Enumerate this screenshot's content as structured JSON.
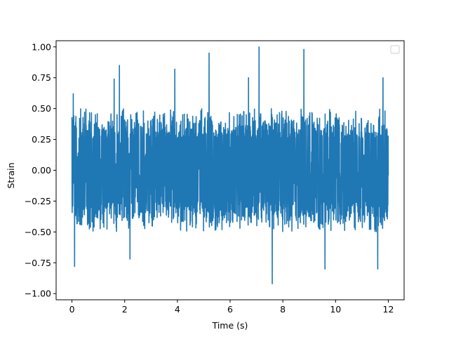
{
  "chart_data": {
    "type": "line",
    "title": "",
    "xlabel": "Time (s)",
    "ylabel": "Strain",
    "xlim": [
      -0.6,
      12.6
    ],
    "ylim": [
      -1.05,
      1.05
    ],
    "xticks": [
      0,
      2,
      4,
      6,
      8,
      10,
      12
    ],
    "xtick_labels": [
      "0",
      "2",
      "4",
      "6",
      "8",
      "10",
      "12"
    ],
    "yticks": [
      -1.0,
      -0.75,
      -0.5,
      -0.25,
      0.0,
      0.25,
      0.5,
      0.75,
      1.0
    ],
    "ytick_labels": [
      "−1.00",
      "−0.75",
      "−0.50",
      "−0.25",
      "0.00",
      "0.25",
      "0.50",
      "0.75",
      "1.00"
    ],
    "grid": false,
    "legend": "upper right (empty)",
    "colors": {
      "series": "#1f77b4"
    },
    "series": [
      {
        "x_range": [
          0,
          12
        ],
        "y_envelope_typical": [
          -0.5,
          0.5
        ],
        "peaks": [
          {
            "x": 0.05,
            "y": 0.62
          },
          {
            "x": 0.1,
            "y": -0.78
          },
          {
            "x": 1.6,
            "y": 0.74
          },
          {
            "x": 1.8,
            "y": 0.85
          },
          {
            "x": 2.2,
            "y": -0.72
          },
          {
            "x": 3.9,
            "y": 0.82
          },
          {
            "x": 5.2,
            "y": 0.95
          },
          {
            "x": 6.7,
            "y": 0.75
          },
          {
            "x": 7.1,
            "y": 1.0
          },
          {
            "x": 7.6,
            "y": -0.92
          },
          {
            "x": 8.8,
            "y": 0.98
          },
          {
            "x": 9.6,
            "y": -0.8
          },
          {
            "x": 11.6,
            "y": -0.8
          },
          {
            "x": 11.8,
            "y": 0.75
          }
        ],
        "note": "dense noise signal"
      }
    ]
  }
}
